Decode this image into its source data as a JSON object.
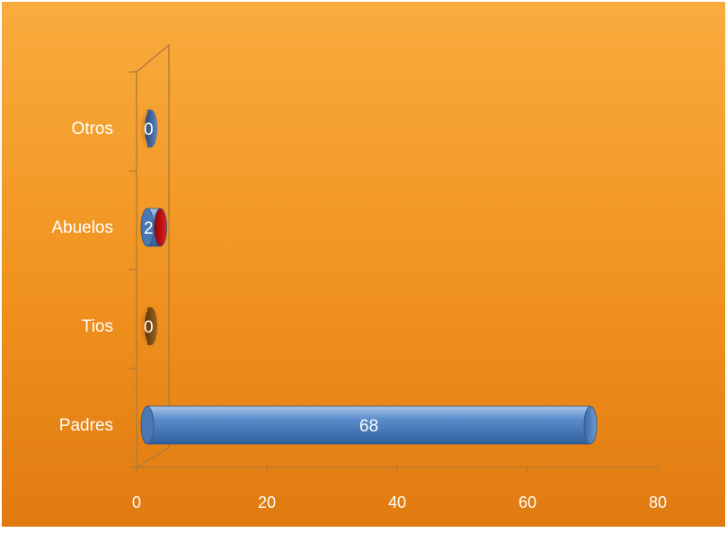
{
  "chart_data": {
    "type": "bar",
    "orientation": "horizontal",
    "categories": [
      "Padres",
      "Tios",
      "Abuelos",
      "Otros"
    ],
    "values": [
      68,
      0,
      2,
      0
    ],
    "data_labels": [
      "68",
      "0",
      "2",
      "0"
    ],
    "bar_colors": [
      "#4f81bd",
      "#7a4a12",
      "#c00000",
      "#3a5f95"
    ],
    "xlim": [
      0,
      80
    ],
    "xticks": [
      "0",
      "20",
      "40",
      "60",
      "80"
    ],
    "gridlines": false,
    "legend": "none",
    "style": "3d-cylinder"
  },
  "colors": {
    "background_top": "#f7a93c",
    "background_bottom": "#e47f12",
    "border": "#ffffff",
    "axis": "#a06a2a",
    "text": "#ffffff"
  }
}
